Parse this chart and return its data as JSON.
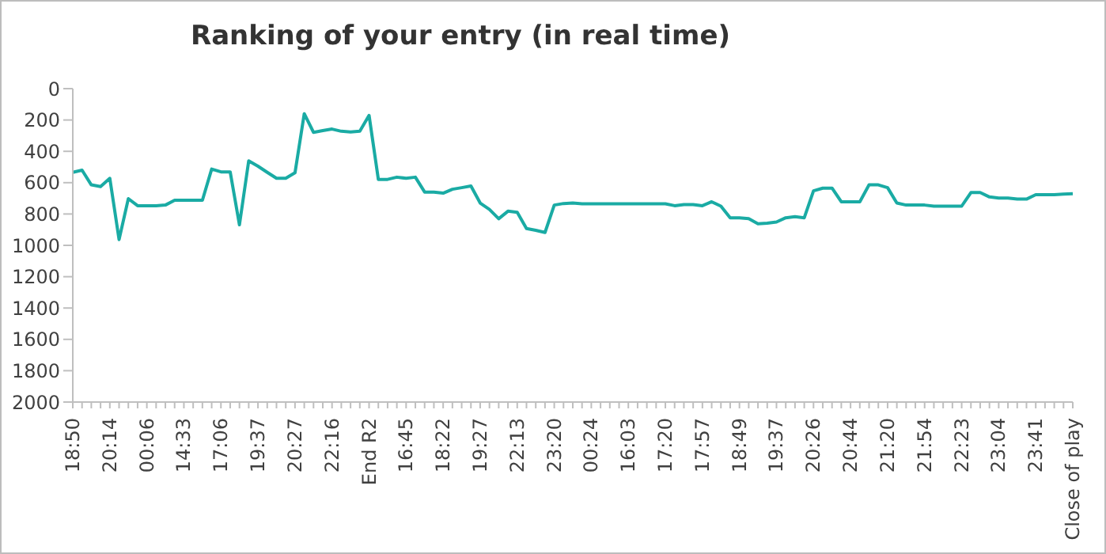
{
  "chart_data": {
    "type": "line",
    "title": "Ranking of your entry (in real time)",
    "categories": [
      "18:50",
      null,
      null,
      null,
      "20:14",
      null,
      null,
      null,
      "00:06",
      null,
      null,
      null,
      "14:33",
      null,
      null,
      null,
      "17:06",
      null,
      null,
      null,
      "19:37",
      null,
      null,
      null,
      "20:27",
      null,
      null,
      null,
      "22:16",
      null,
      null,
      null,
      "End R2",
      null,
      null,
      null,
      "16:45",
      null,
      null,
      null,
      "18:22",
      null,
      null,
      null,
      "19:27",
      null,
      null,
      null,
      "22:13",
      null,
      null,
      null,
      "23:20",
      null,
      null,
      null,
      "00:24",
      null,
      null,
      null,
      "16:03",
      null,
      null,
      null,
      "17:20",
      null,
      null,
      null,
      "17:57",
      null,
      null,
      null,
      "18:49",
      null,
      null,
      null,
      "19:37",
      null,
      null,
      null,
      "20:26",
      null,
      null,
      null,
      "20:44",
      null,
      null,
      null,
      "21:20",
      null,
      null,
      null,
      "21:54",
      null,
      null,
      null,
      "22:23",
      null,
      null,
      null,
      "23:04",
      null,
      null,
      null,
      "23:41",
      null,
      null,
      null,
      "Close of play"
    ],
    "series": [
      {
        "color": "#1aaba4",
        "values": [
          534,
          520,
          614,
          625,
          572,
          963,
          702,
          747,
          747,
          747,
          743,
          712,
          712,
          712,
          712,
          513,
          531,
          531,
          869,
          461,
          495,
          534,
          572,
          572,
          537,
          160,
          279,
          268,
          258,
          272,
          276,
          272,
          171,
          579,
          579,
          565,
          572,
          565,
          660,
          660,
          667,
          642,
          632,
          621,
          730,
          771,
          830,
          782,
          789,
          893,
          904,
          918,
          743,
          733,
          730,
          735,
          735,
          735,
          735,
          735,
          735,
          735,
          735,
          735,
          735,
          747,
          740,
          740,
          747,
          722,
          750,
          824,
          824,
          830,
          862,
          859,
          851,
          824,
          817,
          824,
          652,
          635,
          635,
          722,
          722,
          722,
          614,
          614,
          632,
          730,
          743,
          743,
          743,
          750,
          750,
          750,
          750,
          663,
          663,
          691,
          698,
          698,
          705,
          705,
          677,
          677,
          677,
          673,
          670
        ]
      }
    ],
    "ylim": [
      2000,
      0
    ],
    "yticks": [
      0,
      200,
      400,
      600,
      800,
      1000,
      1200,
      1400,
      1600,
      1800,
      2000
    ],
    "grid": false,
    "legend": false,
    "marker": "none",
    "line_style": "solid"
  }
}
